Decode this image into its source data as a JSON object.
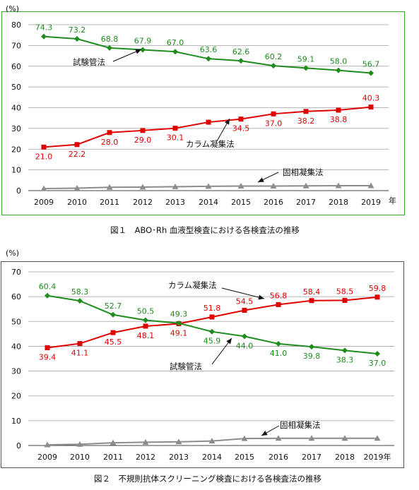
{
  "chart_data": [
    {
      "type": "line",
      "caption": "図１　ABO･Rh 血液型検査における各検査法の推移",
      "ylabel_unit": "(%)",
      "x_unit": "年",
      "x": [
        2009,
        2010,
        2011,
        2012,
        2013,
        2014,
        2015,
        2016,
        2017,
        2018,
        2019
      ],
      "x_tick_labels": [
        "2009",
        "2010",
        "2011",
        "2012",
        "2013",
        "2014",
        "2015",
        "2016",
        "2017",
        "2018",
        "2019"
      ],
      "ylim": [
        0,
        80
      ],
      "yticks": [
        0,
        10,
        20,
        30,
        40,
        50,
        60,
        70,
        80
      ],
      "grid": true,
      "frame_color": "#3aa535",
      "series": [
        {
          "name": "試験管法",
          "color": "#1e8c1e",
          "marker": "diamond",
          "values": [
            74.3,
            73.2,
            68.8,
            67.9,
            67.0,
            63.6,
            62.6,
            60.2,
            59.1,
            58.0,
            56.7
          ],
          "labels": [
            "74.3",
            "73.2",
            "68.8",
            "67.9",
            "67.0",
            "63.6",
            "62.6",
            "60.2",
            "59.1",
            "58.0",
            "56.7"
          ]
        },
        {
          "name": "カラム凝集法",
          "color": "#e00000",
          "marker": "square",
          "values": [
            21.0,
            22.2,
            28.0,
            29.0,
            30.1,
            33.0,
            34.5,
            37.0,
            38.2,
            38.8,
            40.3
          ],
          "labels": [
            "21.0",
            "22.2",
            "28.0",
            "29.0",
            "30.1",
            "",
            "34.5",
            "37.0",
            "38.2",
            "38.8",
            "40.3"
          ]
        },
        {
          "name": "固相凝集法",
          "color": "#8c8c8c",
          "marker": "triangle",
          "values": [
            1.0,
            1.2,
            1.6,
            1.7,
            1.9,
            2.1,
            2.2,
            2.2,
            2.3,
            2.4,
            2.4
          ],
          "labels": []
        }
      ]
    },
    {
      "type": "line",
      "caption": "図２　不規則抗体スクリーニング検査における各検査法の推移",
      "ylabel_unit": "(%)",
      "x_unit": "年",
      "x": [
        2009,
        2010,
        2011,
        2012,
        2013,
        2014,
        2015,
        2016,
        2017,
        2018,
        2019
      ],
      "x_tick_labels": [
        "2009",
        "2010",
        "2011",
        "2012",
        "2013",
        "2014",
        "2015",
        "2016",
        "2017",
        "2018",
        "2019年"
      ],
      "ylim": [
        0,
        70
      ],
      "yticks": [
        0,
        10,
        20,
        30,
        40,
        50,
        60,
        70
      ],
      "grid": true,
      "frame_color": "#555555",
      "series": [
        {
          "name": "カラム凝集法",
          "color": "#e00000",
          "marker": "square",
          "values": [
            39.4,
            41.1,
            45.5,
            48.1,
            49.1,
            51.8,
            54.5,
            56.8,
            58.4,
            58.5,
            59.8
          ],
          "labels": [
            "39.4",
            "41.1",
            "45.5",
            "48.1",
            "49.1",
            "51.8",
            "54.5",
            "56.8",
            "58.4",
            "58.5",
            "59.8"
          ]
        },
        {
          "name": "試験管法",
          "color": "#1e8c1e",
          "marker": "diamond",
          "values": [
            60.4,
            58.3,
            52.7,
            50.5,
            49.3,
            45.9,
            44.0,
            41.0,
            39.8,
            38.3,
            37.0
          ],
          "labels": [
            "60.4",
            "58.3",
            "52.7",
            "50.5",
            "49.3",
            "45.9",
            "44.0",
            "41.0",
            "39.8",
            "38.3",
            "37.0"
          ]
        },
        {
          "name": "固相凝集法",
          "color": "#8c8c8c",
          "marker": "triangle",
          "values": [
            0.3,
            0.5,
            1.1,
            1.3,
            1.5,
            1.8,
            2.8,
            2.9,
            2.9,
            2.9,
            2.9
          ],
          "labels": []
        }
      ]
    }
  ]
}
